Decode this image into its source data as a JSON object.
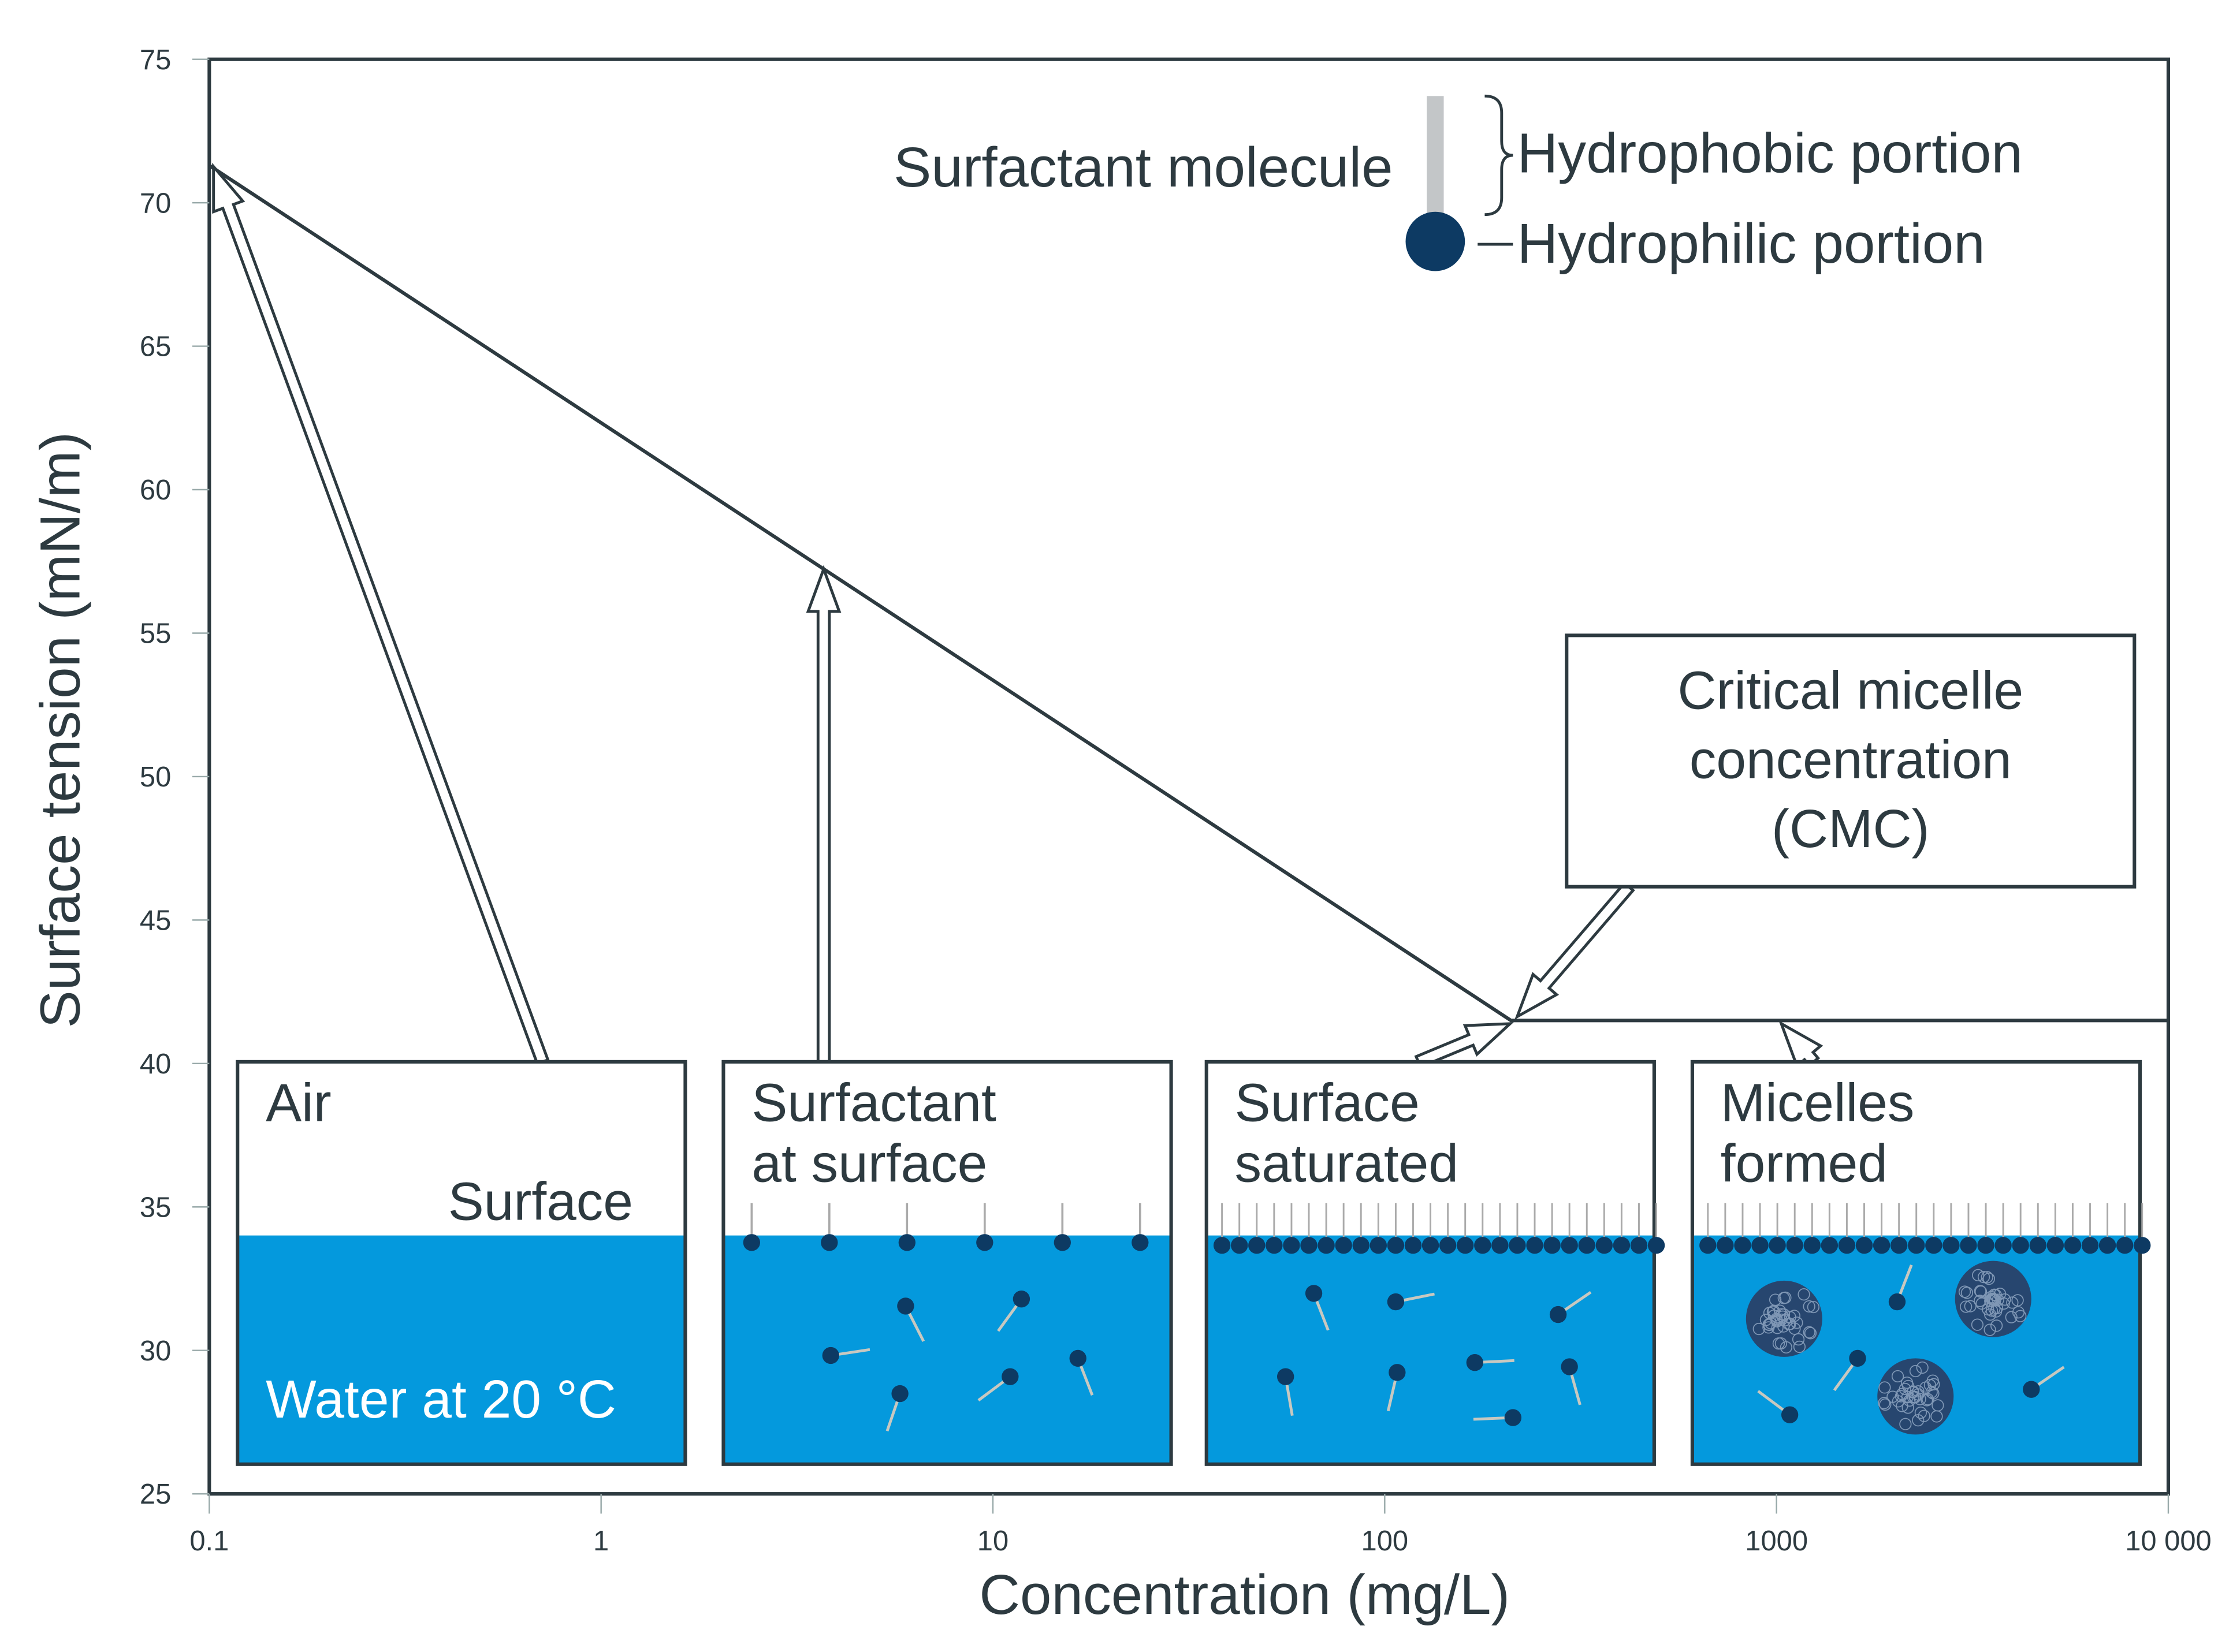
{
  "chart_data": {
    "type": "line",
    "xlabel": "Concentration (mg/L)",
    "ylabel": "Surface tension (mN/m)",
    "xscale": "log",
    "xlim": [
      0.1,
      10000
    ],
    "ylim": [
      25,
      75
    ],
    "xticks": [
      0.1,
      1,
      10,
      100,
      1000,
      10000
    ],
    "xtick_labels": [
      "0.1",
      "1",
      "10",
      "100",
      "1000",
      "10 000"
    ],
    "yticks": [
      25,
      30,
      35,
      40,
      45,
      50,
      55,
      60,
      65,
      70,
      75
    ],
    "yticks_labels": [
      "25",
      "30",
      "35",
      "40",
      "45",
      "50",
      "55",
      "60",
      "65",
      "70",
      "75"
    ],
    "grid": false,
    "series": [
      {
        "x": [
          0.1,
          210,
          10000
        ],
        "y": [
          71.3,
          41.5,
          41.5
        ]
      }
    ],
    "colors": {
      "line": "#2d3a40",
      "water": "#0499dd",
      "molecule_head": "#0d3a63",
      "molecule_tail": "#c8c8c0"
    }
  },
  "legend": {
    "title": "Surfactant molecule",
    "hydrophobic": "Hydrophobic portion",
    "hydrophilic": "Hydrophilic portion"
  },
  "cmc": {
    "line1": "Critical micelle",
    "line2": "concentration",
    "line3": "(CMC)"
  },
  "panels": [
    {
      "line1": "Air",
      "line2": "Surface",
      "water_label": "Water at 20 °C",
      "state": "clean"
    },
    {
      "line1": "Surfactant",
      "line2": "at surface",
      "state": "sparse"
    },
    {
      "line1": "Surface",
      "line2": "saturated",
      "state": "saturated"
    },
    {
      "line1": "Micelles",
      "line2": "formed",
      "state": "micelles"
    }
  ]
}
